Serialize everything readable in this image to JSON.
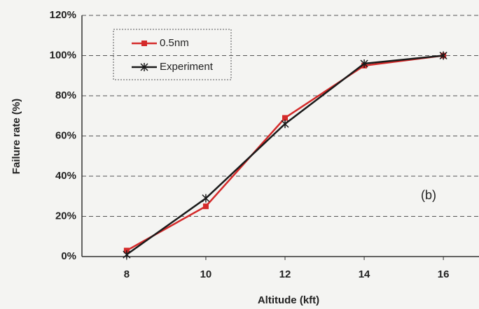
{
  "chart_data": {
    "type": "line",
    "x_label": "Altitude (kft)",
    "y_label": "Failure rate (%)",
    "annotation": "(b)",
    "x": [
      8,
      10,
      12,
      14,
      16
    ],
    "series": [
      {
        "name": "0.5nm",
        "color": "#d42a2a",
        "marker": "square",
        "values": [
          3,
          25,
          69,
          95,
          100
        ]
      },
      {
        "name": "Experiment",
        "color": "#1a1a1a",
        "marker": "star",
        "values": [
          1,
          29,
          66,
          96,
          100
        ]
      }
    ],
    "xlim": [
      6.87,
      16.9
    ],
    "xticks": [
      8,
      10,
      12,
      14,
      16
    ],
    "ylim": [
      0,
      120
    ],
    "yticks": [
      {
        "value": 0,
        "label": "0%"
      },
      {
        "value": 20,
        "label": "20%"
      },
      {
        "value": 40,
        "label": "40%"
      },
      {
        "value": 60,
        "label": "60%"
      },
      {
        "value": 80,
        "label": "80%"
      },
      {
        "value": 100,
        "label": "100%"
      },
      {
        "value": 120,
        "label": "120%"
      }
    ],
    "grid": true,
    "legend": "upper left"
  }
}
